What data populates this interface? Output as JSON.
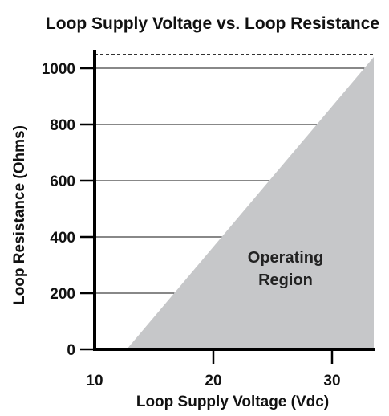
{
  "chart_data": {
    "type": "area",
    "title": "Loop Supply Voltage vs. Loop Resistance",
    "xlabel": "Loop Supply Voltage (Vdc)",
    "ylabel": "Loop Resistance (Ohms)",
    "xlim": [
      10,
      35
    ],
    "ylim": [
      0,
      1050
    ],
    "x_ticks": [
      10,
      20,
      30
    ],
    "y_ticks": [
      0,
      200,
      400,
      600,
      800,
      1000
    ],
    "grid": "horizontal",
    "max_resistance_dashed": 1050,
    "region": {
      "label_line1": "Operating",
      "label_line2": "Region",
      "color": "#c6c7c9",
      "boundary": [
        {
          "x": 12.7,
          "y": 0
        },
        {
          "x": 35,
          "y": 1040
        },
        {
          "x": 35,
          "y": 0
        }
      ]
    }
  }
}
